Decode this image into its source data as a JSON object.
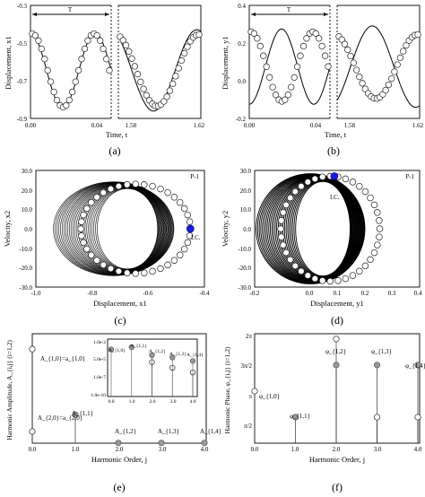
{
  "chart_data": [
    {
      "panel": "a",
      "type": "line",
      "caption": "(a)",
      "xlabel": "Time, t",
      "ylabel": "Displacement, x1",
      "xticks": [
        "0.00",
        "0.04",
        "1.58",
        "1.62"
      ],
      "yticks": [
        "-0.3",
        "-0.5",
        "-0.7",
        "-0.9"
      ],
      "ylim": [
        -0.9,
        -0.3
      ],
      "annotation": "T",
      "series": [
        {
          "style": "line",
          "segments": [
            {
              "t0": 0.0,
              "t1": 0.05,
              "f": "cos"
            },
            {
              "t0": 1.55,
              "t1": 1.62,
              "f": "cos"
            }
          ]
        },
        {
          "style": "circles",
          "n_left": 26,
          "n_right": 28
        }
      ]
    },
    {
      "panel": "b",
      "type": "line",
      "caption": "(b)",
      "xlabel": "Time, t",
      "ylabel": "Displacement, y1",
      "xticks": [
        "0.00",
        "0.04",
        "1.58",
        "1.62"
      ],
      "yticks": [
        "0.4",
        "0.2",
        "0.0",
        "-0.2"
      ],
      "ylim": [
        -0.2,
        0.4
      ],
      "annotation": "T"
    },
    {
      "panel": "c",
      "type": "scatter",
      "caption": "(c)",
      "xlabel": "Displacement, x1",
      "ylabel": "Velocity, x2",
      "xticks": [
        "-1.0",
        "-0.8",
        "-0.6",
        "-0.4"
      ],
      "yticks": [
        "30.0",
        "20.0",
        "10.0",
        "0.0",
        "-10.0",
        "-20.0",
        "-30.0"
      ],
      "xlim": [
        -1.0,
        -0.4
      ],
      "ylim": [
        -30,
        30
      ],
      "label": "P-1",
      "ic_label": "I.C.",
      "ic": [
        -0.45,
        0.0
      ],
      "orbit": {
        "center": -0.645,
        "amp": 0.195,
        "vamp": 23
      }
    },
    {
      "panel": "d",
      "type": "scatter",
      "caption": "(d)",
      "xlabel": "Displacement, y1",
      "ylabel": "Velocity, y2",
      "xticks": [
        "-0.2",
        "0.0",
        "0.1",
        "0.2",
        "0.3",
        "0.4"
      ],
      "yticks": [
        "30.0",
        "20.0",
        "10.0",
        "0.0",
        "-10.0",
        "-20.0",
        "-30.0"
      ],
      "xlim": [
        -0.2,
        0.4
      ],
      "ylim": [
        -30,
        30
      ],
      "label": "P-1",
      "ic_label": "I.C.",
      "ic": [
        0.09,
        27.0
      ],
      "orbit": {
        "center": 0.075,
        "amp": 0.18,
        "vamp": 27
      }
    },
    {
      "panel": "e",
      "type": "scatter",
      "caption": "(e)",
      "xlabel": "Harmonic Order, j",
      "ylabel": "Harmonic Amplitude, A_{i,j} (i=1,2)",
      "xticks": [
        "0.0",
        "1.0",
        "2.0",
        "3.0",
        "4.0"
      ],
      "inset_xticks": [
        "0.0",
        "1.0",
        "2.0",
        "3.0",
        "4.0"
      ],
      "inset_yticks": [
        "1.0e-2",
        "5.0e-5",
        "1.0e-7",
        "1.0e-10"
      ],
      "labels": [
        "A_{1,0}=a_{1,0}",
        "A_{2,0}=a_{2,0}",
        "A_{1,1}",
        "A_{1,2}",
        "A_{1,3}",
        "A_{1,4}"
      ],
      "inset_labels": [
        "A_{1,0}",
        "A_{1,1}",
        "A_{1,2}",
        "A_{1,3}",
        "A_{1,4}"
      ],
      "points": [
        {
          "x": 0,
          "y": 0.645,
          "marker": "open"
        },
        {
          "x": 0,
          "y": 0.08,
          "marker": "open"
        },
        {
          "x": 1,
          "y": 0.195,
          "marker": "filled"
        },
        {
          "x": 2,
          "y": 0.002,
          "marker": "filled"
        },
        {
          "x": 3,
          "y": 0.002,
          "marker": "filled"
        },
        {
          "x": 4,
          "y": 0.002,
          "marker": "filled"
        }
      ]
    },
    {
      "panel": "f",
      "type": "scatter",
      "caption": "(f)",
      "xlabel": "Harmonic Order, j",
      "ylabel": "Harmonic Phase, φ_{i,j} (i=1,2)",
      "xticks": [
        "0.0",
        "1.0",
        "2.0",
        "3.0",
        "4.0"
      ],
      "yticks": [
        "2π",
        "3π/2",
        "π",
        "π/2"
      ],
      "labels": [
        "φ_{1,0}",
        "φ_{1,1}",
        "φ_{1,2}",
        "φ_{1,3}",
        "φ_{1,4}"
      ],
      "points": [
        {
          "x": 0,
          "y": 3.14,
          "marker": "open"
        },
        {
          "x": 1,
          "y": 1.57,
          "marker": "filled"
        },
        {
          "x": 2,
          "y": 6.28,
          "marker": "open"
        },
        {
          "x": 2,
          "y": 4.71,
          "marker": "filled"
        },
        {
          "x": 3,
          "y": 4.71,
          "marker": "filled"
        },
        {
          "x": 3,
          "y": 1.57,
          "marker": "open"
        },
        {
          "x": 4,
          "y": 4.71,
          "marker": "filled"
        },
        {
          "x": 4,
          "y": 1.57,
          "marker": "open"
        }
      ]
    }
  ]
}
